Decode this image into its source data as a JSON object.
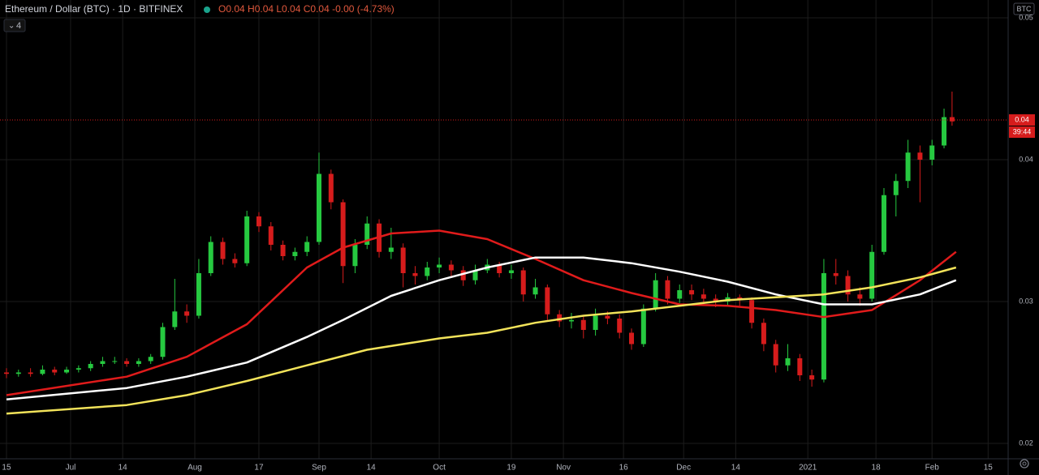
{
  "chart_data": {
    "type": "candlestick",
    "title": "Ethereum / Dollar (BTC) · 1D · BITFINEX",
    "ohlc_text": "O0.04 H0.04 L0.04 C0.04 -0.00 (-4.73%)",
    "indicator_count": "4",
    "currency": "BTC",
    "countdown": "39:44",
    "last_price": {
      "value": 0.0428,
      "label": "0.04"
    },
    "up_color": "#26c940",
    "down_color": "#d61c1c",
    "ylim": [
      0.018914,
      0.051257
    ],
    "yticks": [
      0.02,
      0.03,
      0.04,
      0.05
    ],
    "xlim": [
      -1.62,
      250
    ],
    "xticks": [
      {
        "value": 0,
        "label": "15"
      },
      {
        "value": 16,
        "label": "Jul"
      },
      {
        "value": 29,
        "label": "14"
      },
      {
        "value": 47,
        "label": "Aug"
      },
      {
        "value": 63,
        "label": "17"
      },
      {
        "value": 78,
        "label": "Sep"
      },
      {
        "value": 91,
        "label": "14"
      },
      {
        "value": 108,
        "label": "Oct"
      },
      {
        "value": 126,
        "label": "19"
      },
      {
        "value": 139,
        "label": "Nov"
      },
      {
        "value": 154,
        "label": "16"
      },
      {
        "value": 169,
        "label": "Dec"
      },
      {
        "value": 182,
        "label": "14"
      },
      {
        "value": 200,
        "label": "2021"
      },
      {
        "value": 217,
        "label": "18"
      },
      {
        "value": 231,
        "label": "Feb"
      },
      {
        "value": 245,
        "label": "15"
      }
    ],
    "grid": true,
    "x": [
      0,
      3,
      6,
      9,
      12,
      15,
      18,
      21,
      24,
      27,
      30,
      33,
      36,
      39,
      42,
      45,
      48,
      51,
      54,
      57,
      60,
      63,
      66,
      69,
      72,
      75,
      78,
      81,
      84,
      87,
      90,
      93,
      96,
      99,
      102,
      105,
      108,
      111,
      114,
      117,
      120,
      123,
      126,
      129,
      132,
      135,
      138,
      141,
      144,
      147,
      150,
      153,
      156,
      159,
      162,
      165,
      168,
      171,
      174,
      177,
      180,
      183,
      186,
      189,
      192,
      195,
      198,
      201,
      204,
      207,
      210,
      213,
      216,
      219,
      222,
      225,
      228,
      231,
      234,
      236
    ],
    "ohlc": [
      [
        0.025,
        0.0253,
        0.0246,
        0.0249
      ],
      [
        0.0249,
        0.0252,
        0.0247,
        0.025
      ],
      [
        0.025,
        0.0253,
        0.0247,
        0.0249
      ],
      [
        0.0249,
        0.0255,
        0.0248,
        0.0252
      ],
      [
        0.0252,
        0.0254,
        0.0248,
        0.025
      ],
      [
        0.025,
        0.0254,
        0.0249,
        0.0252
      ],
      [
        0.0252,
        0.0255,
        0.025,
        0.0253
      ],
      [
        0.0253,
        0.0258,
        0.0251,
        0.0256
      ],
      [
        0.0256,
        0.0261,
        0.0254,
        0.0258
      ],
      [
        0.0258,
        0.0261,
        0.0256,
        0.0258
      ],
      [
        0.0258,
        0.026,
        0.0254,
        0.0256
      ],
      [
        0.0256,
        0.026,
        0.0254,
        0.0258
      ],
      [
        0.0258,
        0.0263,
        0.0256,
        0.0261
      ],
      [
        0.0261,
        0.0285,
        0.0259,
        0.0282
      ],
      [
        0.0282,
        0.0316,
        0.028,
        0.0293
      ],
      [
        0.0293,
        0.0298,
        0.0285,
        0.029
      ],
      [
        0.029,
        0.033,
        0.0288,
        0.032
      ],
      [
        0.032,
        0.0346,
        0.0318,
        0.0342
      ],
      [
        0.0342,
        0.0345,
        0.0326,
        0.033
      ],
      [
        0.033,
        0.0334,
        0.0324,
        0.0327
      ],
      [
        0.0327,
        0.0364,
        0.0325,
        0.036
      ],
      [
        0.036,
        0.0363,
        0.0349,
        0.0353
      ],
      [
        0.0353,
        0.0356,
        0.0336,
        0.034
      ],
      [
        0.034,
        0.0343,
        0.0329,
        0.0332
      ],
      [
        0.0332,
        0.0338,
        0.0329,
        0.0335
      ],
      [
        0.0335,
        0.0346,
        0.0332,
        0.0342
      ],
      [
        0.0342,
        0.0405,
        0.034,
        0.039
      ],
      [
        0.039,
        0.0393,
        0.0365,
        0.037
      ],
      [
        0.037,
        0.0372,
        0.0313,
        0.0325
      ],
      [
        0.0325,
        0.0344,
        0.032,
        0.034
      ],
      [
        0.034,
        0.036,
        0.0337,
        0.0355
      ],
      [
        0.0355,
        0.0358,
        0.0331,
        0.0335
      ],
      [
        0.0335,
        0.0352,
        0.033,
        0.0338
      ],
      [
        0.0338,
        0.0341,
        0.031,
        0.032
      ],
      [
        0.032,
        0.0325,
        0.0312,
        0.0318
      ],
      [
        0.0318,
        0.0328,
        0.0315,
        0.0324
      ],
      [
        0.0324,
        0.0331,
        0.032,
        0.0326
      ],
      [
        0.0326,
        0.0329,
        0.0318,
        0.0322
      ],
      [
        0.0322,
        0.0325,
        0.0311,
        0.0315
      ],
      [
        0.0315,
        0.0326,
        0.0312,
        0.0322
      ],
      [
        0.0322,
        0.033,
        0.032,
        0.0326
      ],
      [
        0.0326,
        0.0328,
        0.0317,
        0.032
      ],
      [
        0.032,
        0.0326,
        0.0316,
        0.0322
      ],
      [
        0.0322,
        0.0324,
        0.03,
        0.0305
      ],
      [
        0.0305,
        0.0316,
        0.0302,
        0.031
      ],
      [
        0.031,
        0.0312,
        0.0287,
        0.0291
      ],
      [
        0.0291,
        0.0294,
        0.0282,
        0.0286
      ],
      [
        0.0286,
        0.0292,
        0.0281,
        0.0287
      ],
      [
        0.0287,
        0.029,
        0.0274,
        0.028
      ],
      [
        0.028,
        0.0295,
        0.0276,
        0.029
      ],
      [
        0.029,
        0.0293,
        0.0284,
        0.0288
      ],
      [
        0.0288,
        0.0291,
        0.0274,
        0.0278
      ],
      [
        0.0278,
        0.0281,
        0.0266,
        0.027
      ],
      [
        0.027,
        0.0298,
        0.0268,
        0.0295
      ],
      [
        0.0295,
        0.032,
        0.0293,
        0.0315
      ],
      [
        0.0315,
        0.0318,
        0.0298,
        0.0302
      ],
      [
        0.0302,
        0.0312,
        0.0299,
        0.0308
      ],
      [
        0.0308,
        0.0312,
        0.0301,
        0.0305
      ],
      [
        0.0305,
        0.0309,
        0.0298,
        0.0302
      ],
      [
        0.0302,
        0.0305,
        0.0296,
        0.03
      ],
      [
        0.03,
        0.0306,
        0.0297,
        0.0303
      ],
      [
        0.0303,
        0.0305,
        0.0297,
        0.0301
      ],
      [
        0.0301,
        0.0303,
        0.0281,
        0.0285
      ],
      [
        0.0285,
        0.0288,
        0.0265,
        0.027
      ],
      [
        0.027,
        0.0273,
        0.025,
        0.0255
      ],
      [
        0.0255,
        0.027,
        0.0251,
        0.026
      ],
      [
        0.026,
        0.0263,
        0.0244,
        0.0248
      ],
      [
        0.0248,
        0.0252,
        0.024,
        0.0245
      ],
      [
        0.0245,
        0.033,
        0.0243,
        0.032
      ],
      [
        0.032,
        0.033,
        0.0312,
        0.0318
      ],
      [
        0.0318,
        0.0322,
        0.03,
        0.0305
      ],
      [
        0.0305,
        0.031,
        0.0297,
        0.0302
      ],
      [
        0.0302,
        0.034,
        0.03,
        0.0335
      ],
      [
        0.0335,
        0.038,
        0.0333,
        0.0375
      ],
      [
        0.0375,
        0.039,
        0.036,
        0.0385
      ],
      [
        0.0385,
        0.0414,
        0.038,
        0.0405
      ],
      [
        0.0405,
        0.041,
        0.037,
        0.04
      ],
      [
        0.04,
        0.0414,
        0.0396,
        0.041
      ],
      [
        0.041,
        0.0436,
        0.0408,
        0.043
      ],
      [
        0.043,
        0.0448,
        0.0424,
        0.0427
      ]
    ],
    "moving_averages": [
      {
        "color": "#e01b1b",
        "x": [
          0,
          30,
          45,
          60,
          75,
          84,
          96,
          108,
          120,
          132,
          144,
          156,
          168,
          180,
          192,
          204,
          216,
          228,
          237
        ],
        "values": [
          0.0234,
          0.0247,
          0.0261,
          0.0284,
          0.0324,
          0.0338,
          0.0348,
          0.035,
          0.0344,
          0.033,
          0.0315,
          0.0306,
          0.0298,
          0.0297,
          0.0294,
          0.0289,
          0.0294,
          0.0315,
          0.0335
        ]
      },
      {
        "color": "#ffffff",
        "x": [
          0,
          30,
          45,
          60,
          75,
          84,
          96,
          108,
          120,
          132,
          144,
          156,
          168,
          180,
          192,
          204,
          216,
          228,
          237
        ],
        "values": [
          0.0231,
          0.0239,
          0.0247,
          0.0257,
          0.0275,
          0.0287,
          0.0304,
          0.0315,
          0.0324,
          0.0331,
          0.0331,
          0.0327,
          0.0321,
          0.0314,
          0.0305,
          0.0298,
          0.0298,
          0.0305,
          0.0315
        ]
      },
      {
        "color": "#f2e35a",
        "x": [
          0,
          30,
          45,
          60,
          75,
          90,
          108,
          120,
          132,
          144,
          156,
          168,
          180,
          192,
          204,
          216,
          228,
          237
        ],
        "values": [
          0.0221,
          0.0227,
          0.0234,
          0.0244,
          0.0255,
          0.0266,
          0.0274,
          0.0278,
          0.0285,
          0.029,
          0.0293,
          0.0297,
          0.0301,
          0.0303,
          0.0305,
          0.031,
          0.0317,
          0.0324
        ]
      }
    ]
  }
}
